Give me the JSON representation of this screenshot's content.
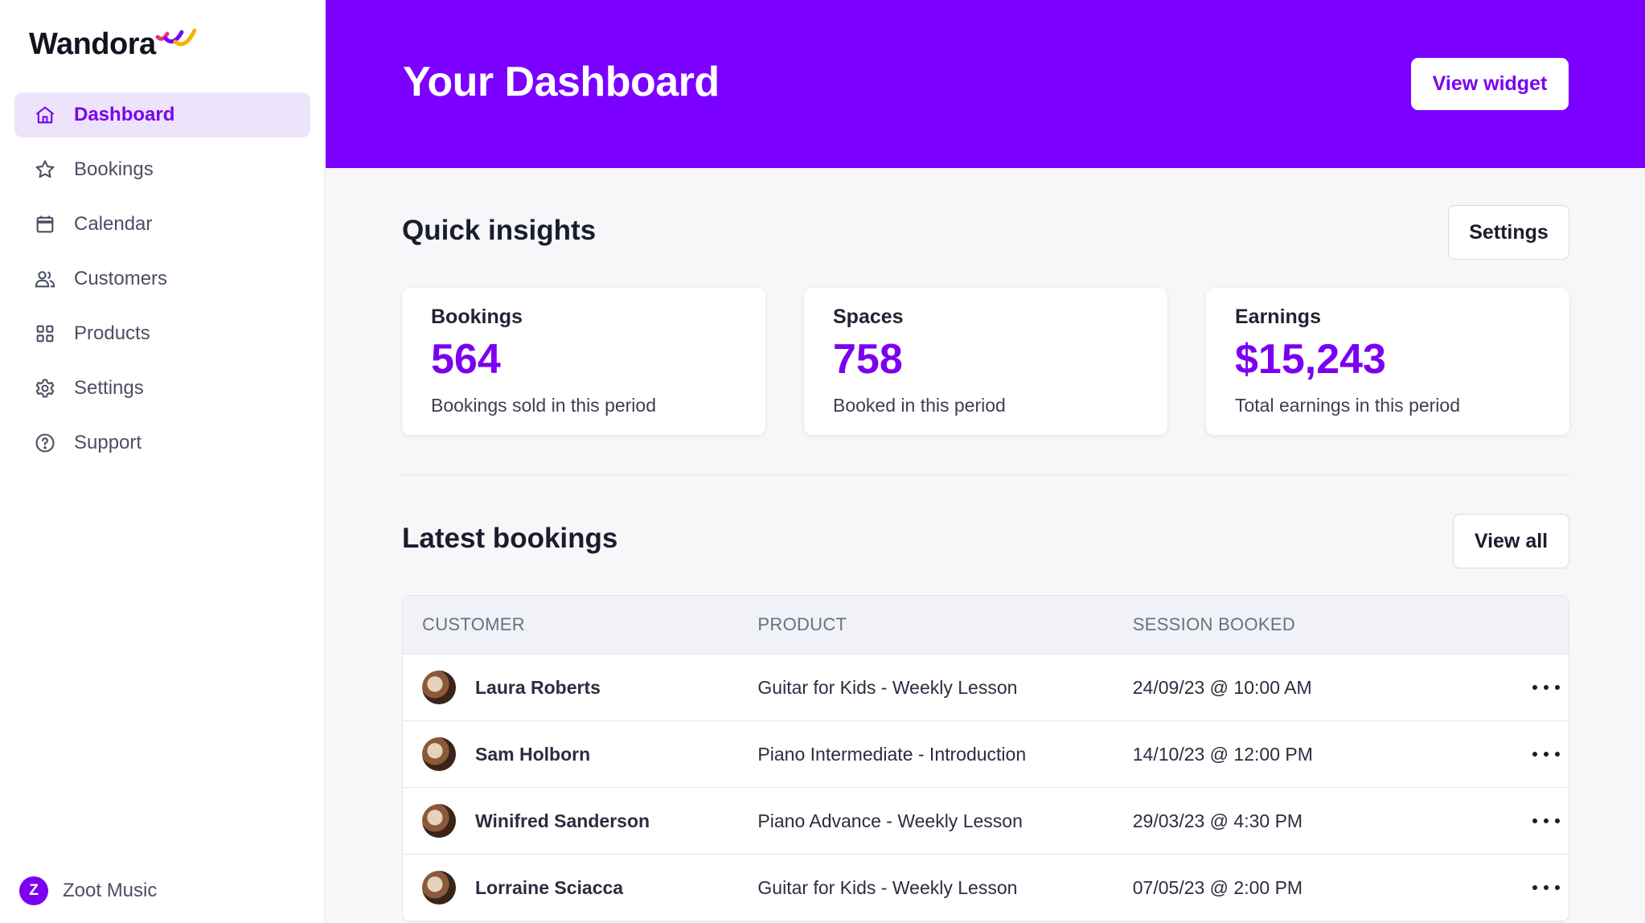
{
  "brand": {
    "name": "Wandora",
    "accent": "#7b00ff"
  },
  "sidebar": {
    "items": [
      {
        "label": "Dashboard",
        "icon": "home-icon",
        "active": true
      },
      {
        "label": "Bookings",
        "icon": "star-icon",
        "active": false
      },
      {
        "label": "Calendar",
        "icon": "calendar-icon",
        "active": false
      },
      {
        "label": "Customers",
        "icon": "users-icon",
        "active": false
      },
      {
        "label": "Products",
        "icon": "grid-icon",
        "active": false
      },
      {
        "label": "Settings",
        "icon": "gear-icon",
        "active": false
      },
      {
        "label": "Support",
        "icon": "help-icon",
        "active": false
      }
    ],
    "account": {
      "initial": "Z",
      "name": "Zoot Music"
    }
  },
  "header": {
    "title": "Your Dashboard",
    "view_widget_label": "View widget"
  },
  "insights": {
    "title": "Quick insights",
    "settings_label": "Settings",
    "cards": [
      {
        "label": "Bookings",
        "value": "564",
        "description": "Bookings sold in this period"
      },
      {
        "label": "Spaces",
        "value": "758",
        "description": "Booked in this period"
      },
      {
        "label": "Earnings",
        "value": "$15,243",
        "description": "Total earnings in this period"
      }
    ]
  },
  "bookings": {
    "title": "Latest bookings",
    "view_all_label": "View all",
    "columns": [
      "CUSTOMER",
      "PRODUCT",
      "SESSION BOOKED"
    ],
    "rows": [
      {
        "customer": "Laura Roberts",
        "product": "Guitar for Kids - Weekly Lesson",
        "session": "24/09/23 @ 10:00 AM"
      },
      {
        "customer": "Sam Holborn",
        "product": "Piano Intermediate - Introduction",
        "session": "14/10/23 @ 12:00 PM"
      },
      {
        "customer": "Winifred Sanderson",
        "product": "Piano Advance - Weekly Lesson",
        "session": "29/03/23 @ 4:30 PM"
      },
      {
        "customer": "Lorraine Sciacca",
        "product": "Guitar for Kids - Weekly Lesson",
        "session": "07/05/23 @ 2:00 PM"
      }
    ]
  }
}
